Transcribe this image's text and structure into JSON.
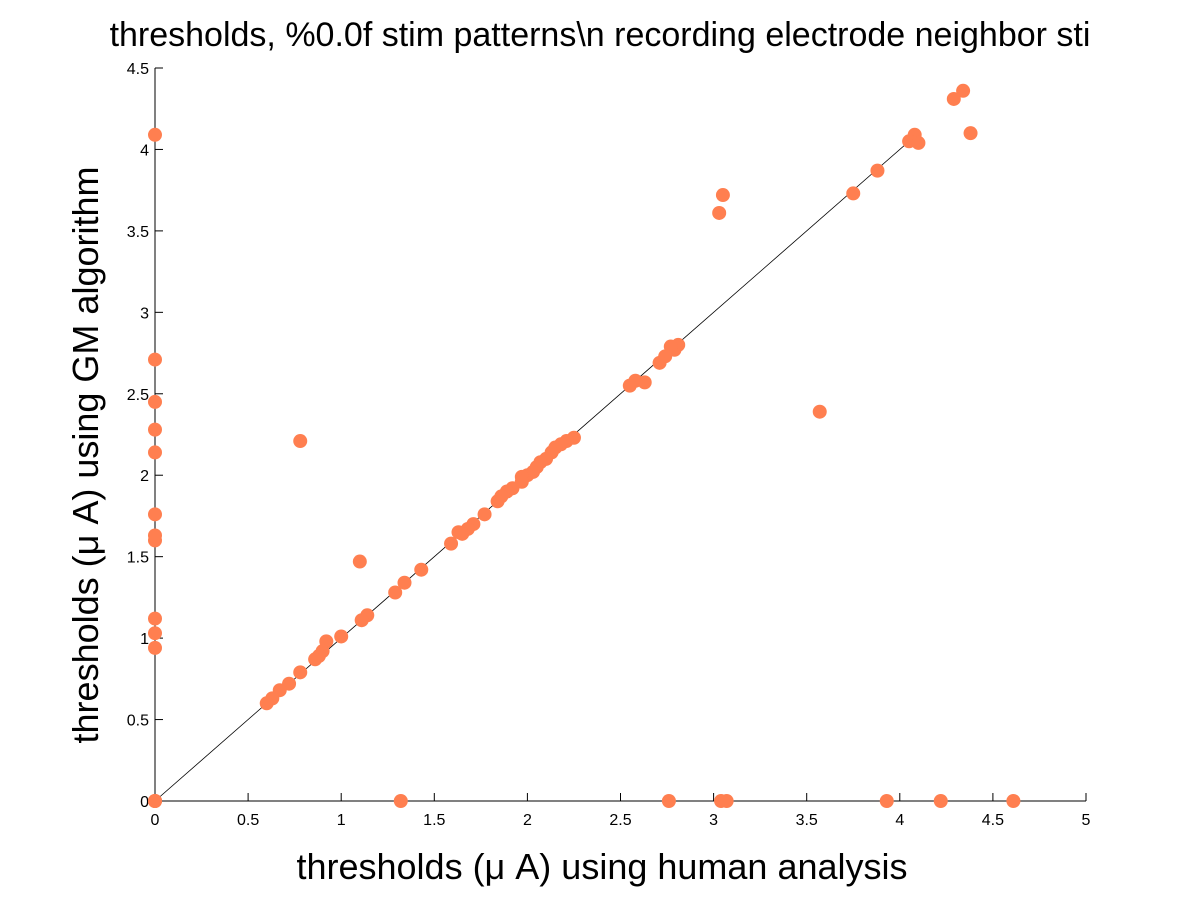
{
  "chart_data": {
    "type": "scatter",
    "title": "thresholds, %0.0f stim patterns\\n recording electrode neighbor sti",
    "xlabel": "thresholds (μ A) using human analysis",
    "ylabel": "thresholds (μ A) using GM algorithm",
    "xlim": [
      0,
      5
    ],
    "ylim": [
      0,
      4.5
    ],
    "xticks": [
      "0",
      "0.5",
      "1",
      "1.5",
      "2",
      "2.5",
      "3",
      "3.5",
      "4",
      "4.5",
      "5"
    ],
    "yticks": [
      "0",
      "0.5",
      "1",
      "1.5",
      "2",
      "2.5",
      "3",
      "3.5",
      "4",
      "4.5"
    ],
    "grid": false,
    "marker_color": "#ff7f50",
    "reference_line": {
      "from": [
        0,
        0
      ],
      "to": [
        4.1,
        4.1
      ]
    },
    "series": [
      {
        "x": [
          0,
          0,
          0,
          0,
          0,
          0,
          0,
          0,
          0,
          0,
          0,
          0,
          0,
          0,
          1.32,
          2.76,
          3.04,
          3.07,
          3.93,
          4.22,
          4.61,
          0.78,
          1.1,
          3.03,
          3.05,
          3.57,
          4.29,
          4.34,
          4.38,
          4.08,
          4.05,
          4.1,
          3.88,
          3.75,
          2.81,
          2.79,
          2.77,
          2.74,
          2.71,
          2.63,
          2.58,
          2.55,
          2.25,
          2.21,
          2.18,
          2.15,
          2.13,
          2.1,
          2.07,
          2.05,
          2.03,
          2.0,
          1.97,
          1.97,
          1.92,
          1.89,
          1.86,
          1.84,
          1.77,
          1.71,
          1.68,
          1.65,
          1.63,
          1.59,
          1.43,
          1.34,
          1.29,
          1.14,
          1.11,
          1.0,
          0.92,
          0.9,
          0.88,
          0.86,
          0.78,
          0.72,
          0.67,
          0.63,
          0.6
        ],
        "y": [
          0,
          0.94,
          1.03,
          1.12,
          1.6,
          1.63,
          1.76,
          2.14,
          2.28,
          2.45,
          2.71,
          4.09,
          0,
          0,
          0,
          0,
          0,
          0,
          0,
          0,
          0,
          2.21,
          1.47,
          3.61,
          3.72,
          2.39,
          4.31,
          4.36,
          4.1,
          4.09,
          4.05,
          4.04,
          3.87,
          3.73,
          2.8,
          2.77,
          2.79,
          2.73,
          2.69,
          2.57,
          2.58,
          2.55,
          2.23,
          2.21,
          2.19,
          2.17,
          2.14,
          2.1,
          2.08,
          2.05,
          2.02,
          2.0,
          1.99,
          1.96,
          1.92,
          1.9,
          1.87,
          1.84,
          1.76,
          1.7,
          1.67,
          1.64,
          1.65,
          1.58,
          1.42,
          1.34,
          1.28,
          1.14,
          1.11,
          1.01,
          0.98,
          0.92,
          0.89,
          0.87,
          0.79,
          0.72,
          0.68,
          0.63,
          0.6
        ]
      }
    ]
  }
}
